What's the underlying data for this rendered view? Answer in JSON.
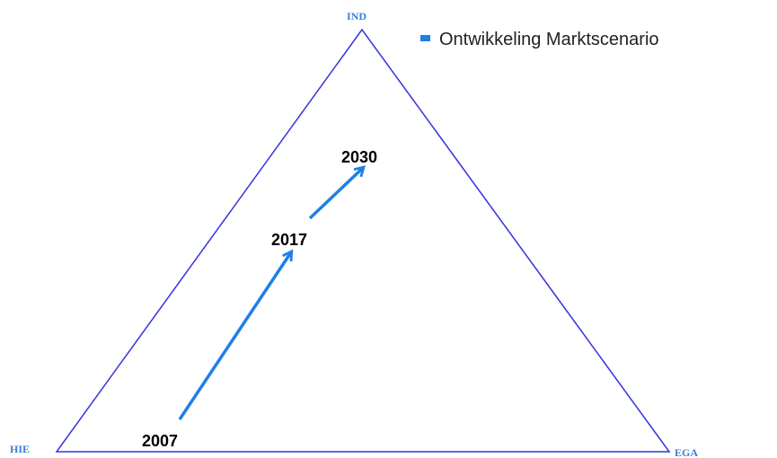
{
  "vertices": [
    {
      "label": "IND"
    },
    {
      "label": "HIE"
    },
    {
      "label": "EGA"
    }
  ],
  "legend": {
    "label": "Ontwikkeling Marktscenario"
  },
  "points": [
    {
      "label": "2007"
    },
    {
      "label": "2017"
    },
    {
      "label": "2030"
    }
  ]
}
